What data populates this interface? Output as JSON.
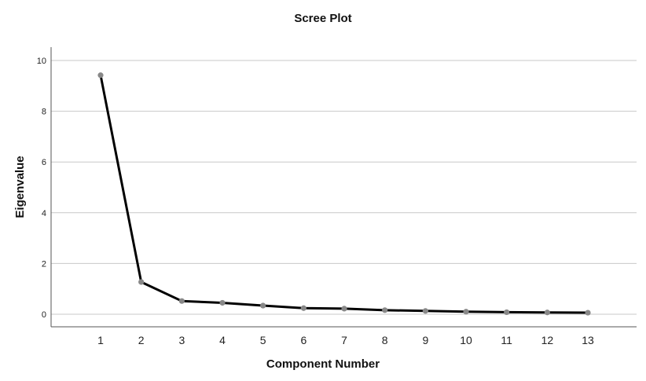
{
  "chart_data": {
    "type": "line",
    "title": "Scree Plot",
    "xlabel": "Component Number",
    "ylabel": "Eigenvalue",
    "categories": [
      "1",
      "2",
      "3",
      "4",
      "5",
      "6",
      "7",
      "8",
      "9",
      "10",
      "11",
      "12",
      "13"
    ],
    "x": [
      1,
      2,
      3,
      4,
      5,
      6,
      7,
      8,
      9,
      10,
      11,
      12,
      13
    ],
    "series": [
      {
        "values": [
          9.42,
          1.27,
          0.52,
          0.45,
          0.34,
          0.24,
          0.22,
          0.16,
          0.13,
          0.1,
          0.08,
          0.07,
          0.06
        ]
      }
    ],
    "ylim": [
      -0.5,
      10.5
    ],
    "yticks": [
      0,
      2,
      4,
      6,
      8,
      10
    ],
    "ytick_labels": [
      "0",
      "2",
      "4",
      "6",
      "8",
      "10"
    ],
    "grid": "horizontal",
    "legend": "none",
    "colors": {
      "line": "#000000",
      "marker": "#888888",
      "grid": "#c8c8c8",
      "axis": "#555555"
    }
  }
}
